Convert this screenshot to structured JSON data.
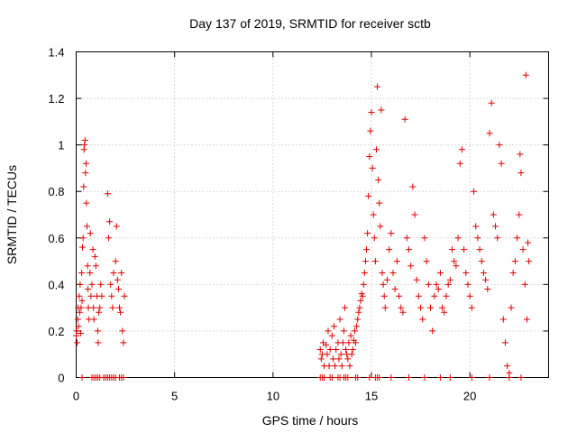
{
  "chart_data": {
    "type": "scatter",
    "title": "Day 137 of 2019, SRMTID for receiver sctb",
    "xlabel": "GPS time / hours",
    "ylabel": "SRMTID / TECUs",
    "xlim": [
      0,
      24
    ],
    "ylim": [
      0,
      1.4
    ],
    "xticks": [
      0,
      5,
      10,
      15,
      20
    ],
    "xtick_labels": [
      "0",
      "5",
      "10",
      "15",
      "20"
    ],
    "yticks": [
      0,
      0.2,
      0.4,
      0.6,
      0.8,
      1,
      1.2,
      1.4
    ],
    "ytick_labels": [
      "0",
      "0.2",
      "0.4",
      "0.6",
      "0.8",
      "1",
      "1.2",
      "1.4"
    ],
    "grid": true,
    "marker": "+",
    "color": "#e00000",
    "series": [
      {
        "name": "SRMTID",
        "points": [
          [
            0.0,
            0.18
          ],
          [
            0.02,
            0.2
          ],
          [
            0.05,
            0.15
          ],
          [
            0.08,
            0.25
          ],
          [
            0.1,
            0.3
          ],
          [
            0.12,
            0.22
          ],
          [
            0.15,
            0.35
          ],
          [
            0.18,
            0.28
          ],
          [
            0.2,
            0.4
          ],
          [
            0.22,
            0.19
          ],
          [
            0.25,
            0.3
          ],
          [
            0.28,
            0.45
          ],
          [
            0.3,
            0.33
          ],
          [
            0.32,
            0.56
          ],
          [
            0.35,
            0.6
          ],
          [
            0.38,
            0.82
          ],
          [
            0.4,
            0.98
          ],
          [
            0.42,
            1.0
          ],
          [
            0.45,
            1.02
          ],
          [
            0.47,
            0.88
          ],
          [
            0.5,
            0.92
          ],
          [
            0.52,
            0.75
          ],
          [
            0.55,
            0.65
          ],
          [
            0.58,
            0.48
          ],
          [
            0.6,
            0.38
          ],
          [
            0.62,
            0.3
          ],
          [
            0.65,
            0.25
          ],
          [
            0.7,
            0.45
          ],
          [
            0.72,
            0.62
          ],
          [
            0.75,
            0.35
          ],
          [
            0.8,
            0.4
          ],
          [
            0.85,
            0.55
          ],
          [
            0.88,
            0.3
          ],
          [
            0.9,
            0.25
          ],
          [
            0.95,
            0.52
          ],
          [
            1.0,
            0.48
          ],
          [
            1.05,
            0.35
          ],
          [
            1.1,
            0.2
          ],
          [
            1.12,
            0.15
          ],
          [
            1.15,
            0.28
          ],
          [
            1.2,
            0.3
          ],
          [
            1.25,
            0.4
          ],
          [
            1.3,
            0.35
          ],
          [
            1.6,
            0.79
          ],
          [
            1.65,
            0.6
          ],
          [
            1.7,
            0.67
          ],
          [
            1.75,
            0.4
          ],
          [
            1.8,
            0.35
          ],
          [
            1.85,
            0.3
          ],
          [
            1.9,
            0.45
          ],
          [
            2.0,
            0.5
          ],
          [
            2.05,
            0.65
          ],
          [
            2.1,
            0.42
          ],
          [
            2.15,
            0.38
          ],
          [
            2.2,
            0.3
          ],
          [
            2.25,
            0.28
          ],
          [
            2.3,
            0.45
          ],
          [
            2.35,
            0.2
          ],
          [
            2.4,
            0.15
          ],
          [
            2.45,
            0.35
          ],
          [
            0.3,
            0.0
          ],
          [
            0.8,
            0.0
          ],
          [
            0.9,
            0.0
          ],
          [
            1.0,
            0.0
          ],
          [
            1.1,
            0.0
          ],
          [
            1.2,
            0.0
          ],
          [
            1.4,
            0.0
          ],
          [
            1.5,
            0.0
          ],
          [
            1.6,
            0.0
          ],
          [
            1.7,
            0.0
          ],
          [
            1.8,
            0.0
          ],
          [
            1.9,
            0.0
          ],
          [
            2.0,
            0.0
          ],
          [
            2.2,
            0.0
          ],
          [
            2.3,
            0.0
          ],
          [
            2.4,
            0.0
          ],
          [
            12.4,
            0.12
          ],
          [
            12.45,
            0.08
          ],
          [
            12.5,
            0.1
          ],
          [
            12.55,
            0.15
          ],
          [
            12.6,
            0.05
          ],
          [
            12.7,
            0.14
          ],
          [
            12.75,
            0.1
          ],
          [
            12.8,
            0.2
          ],
          [
            12.85,
            0.05
          ],
          [
            12.9,
            0.12
          ],
          [
            13.0,
            0.18
          ],
          [
            13.05,
            0.08
          ],
          [
            13.1,
            0.22
          ],
          [
            13.15,
            0.05
          ],
          [
            13.2,
            0.12
          ],
          [
            13.3,
            0.15
          ],
          [
            13.35,
            0.08
          ],
          [
            13.4,
            0.25
          ],
          [
            13.45,
            0.1
          ],
          [
            13.5,
            0.05
          ],
          [
            13.55,
            0.15
          ],
          [
            13.6,
            0.2
          ],
          [
            13.65,
            0.3
          ],
          [
            13.7,
            0.12
          ],
          [
            13.75,
            0.1
          ],
          [
            13.8,
            0.08
          ],
          [
            13.85,
            0.15
          ],
          [
            13.9,
            0.05
          ],
          [
            13.95,
            0.18
          ],
          [
            14.0,
            0.1
          ],
          [
            14.05,
            0.12
          ],
          [
            14.1,
            0.16
          ],
          [
            14.15,
            0.2
          ],
          [
            14.2,
            0.15
          ],
          [
            14.25,
            0.22
          ],
          [
            14.3,
            0.25
          ],
          [
            14.35,
            0.28
          ],
          [
            14.4,
            0.3
          ],
          [
            14.45,
            0.33
          ],
          [
            14.5,
            0.36
          ],
          [
            14.55,
            0.35
          ],
          [
            14.6,
            0.4
          ],
          [
            14.65,
            0.45
          ],
          [
            14.7,
            0.5
          ],
          [
            14.75,
            0.55
          ],
          [
            14.8,
            0.62
          ],
          [
            14.85,
            0.78
          ],
          [
            14.9,
            0.95
          ],
          [
            14.95,
            1.06
          ],
          [
            15.0,
            1.14
          ],
          [
            15.05,
            0.9
          ],
          [
            15.1,
            0.7
          ],
          [
            15.15,
            0.6
          ],
          [
            15.2,
            0.5
          ],
          [
            15.25,
            0.98
          ],
          [
            15.3,
            1.25
          ],
          [
            15.35,
            0.85
          ],
          [
            15.4,
            0.75
          ],
          [
            15.45,
            0.65
          ],
          [
            15.5,
            1.15
          ],
          [
            15.55,
            0.45
          ],
          [
            15.6,
            0.4
          ],
          [
            15.65,
            0.35
          ],
          [
            15.7,
            0.3
          ],
          [
            15.8,
            0.42
          ],
          [
            15.9,
            0.55
          ],
          [
            16.0,
            0.62
          ],
          [
            16.1,
            0.45
          ],
          [
            16.2,
            0.38
          ],
          [
            16.3,
            0.5
          ],
          [
            16.4,
            0.35
          ],
          [
            16.5,
            0.3
          ],
          [
            16.6,
            0.28
          ],
          [
            16.7,
            1.11
          ],
          [
            16.8,
            0.6
          ],
          [
            16.9,
            0.55
          ],
          [
            17.0,
            0.48
          ],
          [
            17.1,
            0.82
          ],
          [
            17.2,
            0.7
          ],
          [
            17.3,
            0.42
          ],
          [
            17.4,
            0.35
          ],
          [
            17.5,
            0.3
          ],
          [
            17.6,
            0.25
          ],
          [
            17.7,
            0.6
          ],
          [
            17.8,
            0.5
          ],
          [
            17.9,
            0.4
          ],
          [
            18.0,
            0.3
          ],
          [
            18.1,
            0.2
          ],
          [
            18.2,
            0.35
          ],
          [
            18.3,
            0.4
          ],
          [
            18.4,
            0.38
          ],
          [
            18.5,
            0.45
          ],
          [
            18.6,
            0.3
          ],
          [
            18.7,
            0.28
          ],
          [
            18.8,
            0.35
          ],
          [
            18.9,
            0.4
          ],
          [
            19.0,
            0.42
          ],
          [
            19.1,
            0.55
          ],
          [
            19.2,
            0.5
          ],
          [
            19.3,
            0.48
          ],
          [
            19.4,
            0.6
          ],
          [
            19.5,
            0.92
          ],
          [
            19.6,
            0.98
          ],
          [
            19.7,
            0.55
          ],
          [
            19.8,
            0.45
          ],
          [
            19.9,
            0.4
          ],
          [
            20.0,
            0.35
          ],
          [
            20.1,
            0.3
          ],
          [
            20.2,
            0.8
          ],
          [
            20.3,
            0.65
          ],
          [
            20.4,
            0.6
          ],
          [
            20.5,
            0.55
          ],
          [
            20.6,
            0.5
          ],
          [
            20.7,
            0.45
          ],
          [
            20.8,
            0.42
          ],
          [
            20.9,
            0.38
          ],
          [
            21.0,
            1.05
          ],
          [
            21.1,
            1.18
          ],
          [
            21.2,
            0.7
          ],
          [
            21.3,
            0.65
          ],
          [
            21.4,
            0.6
          ],
          [
            21.5,
            1.0
          ],
          [
            21.6,
            0.92
          ],
          [
            21.7,
            0.25
          ],
          [
            21.8,
            0.15
          ],
          [
            21.9,
            0.05
          ],
          [
            22.0,
            0.02
          ],
          [
            22.1,
            0.3
          ],
          [
            22.2,
            0.45
          ],
          [
            22.3,
            0.5
          ],
          [
            22.4,
            0.6
          ],
          [
            22.5,
            0.7
          ],
          [
            22.55,
            0.96
          ],
          [
            22.6,
            0.88
          ],
          [
            22.7,
            0.55
          ],
          [
            22.8,
            0.4
          ],
          [
            22.85,
            1.3
          ],
          [
            22.9,
            0.25
          ],
          [
            22.95,
            0.58
          ],
          [
            23.0,
            0.5
          ],
          [
            12.4,
            0.0
          ],
          [
            12.5,
            0.0
          ],
          [
            12.6,
            0.0
          ],
          [
            12.9,
            0.0
          ],
          [
            13.0,
            0.0
          ],
          [
            13.3,
            0.0
          ],
          [
            13.4,
            0.0
          ],
          [
            13.6,
            0.0
          ],
          [
            13.7,
            0.0
          ],
          [
            13.8,
            0.0
          ],
          [
            14.2,
            0.0
          ],
          [
            14.3,
            0.0
          ],
          [
            14.9,
            0.0
          ],
          [
            15.2,
            0.0
          ],
          [
            15.3,
            0.0
          ],
          [
            15.4,
            0.0
          ],
          [
            16.0,
            0.0
          ],
          [
            16.9,
            0.0
          ],
          [
            17.7,
            0.0
          ],
          [
            18.5,
            0.0
          ],
          [
            19.0,
            0.0
          ],
          [
            20.1,
            0.0
          ],
          [
            21.0,
            0.0
          ],
          [
            22.0,
            0.0
          ],
          [
            22.6,
            0.0
          ]
        ]
      }
    ]
  }
}
